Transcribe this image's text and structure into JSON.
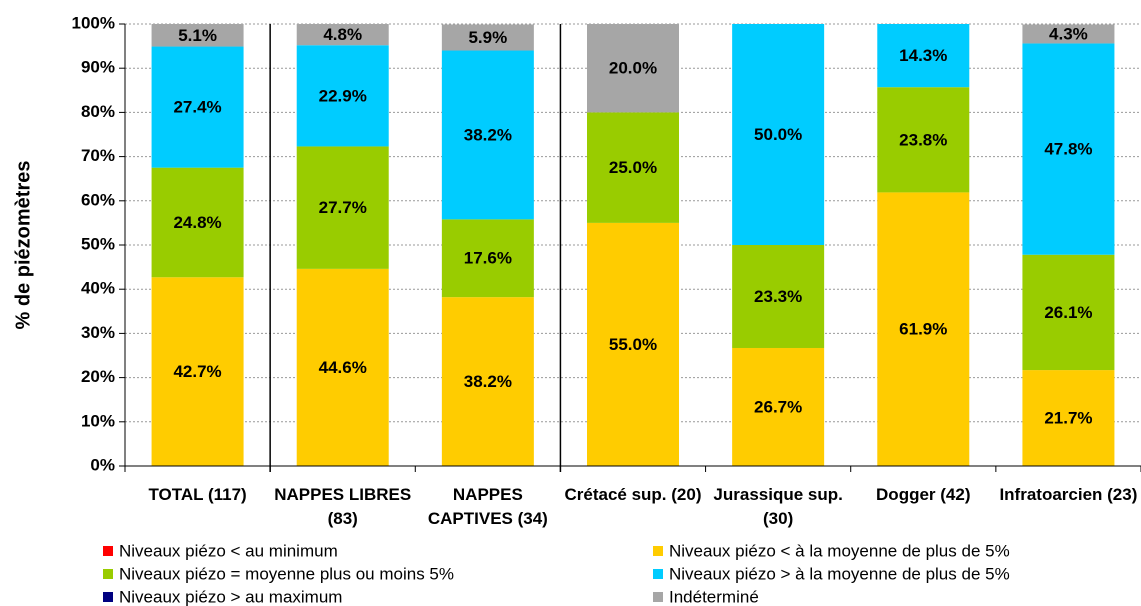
{
  "chart_data": {
    "type": "stacked_bar",
    "y_label": "% de piézomètres",
    "categories": [
      "TOTAL (117)",
      "NAPPES LIBRES (83)",
      "NAPPES CAPTIVES (34)",
      "Crétacé sup. (20)",
      "Jurassique sup. (30)",
      "Dogger (42)",
      "Infratoarcien (23)"
    ],
    "series": [
      {
        "name": "Niveaux piézo < au minimum",
        "color": "#ff0000",
        "values": [
          0,
          0,
          0,
          0,
          0,
          0,
          0
        ]
      },
      {
        "name": "Niveaux piézo < à la moyenne de plus de 5%",
        "color": "#ffcc00",
        "values": [
          42.7,
          44.6,
          38.2,
          55.0,
          26.7,
          61.9,
          21.7
        ],
        "value_labels": [
          "42.7%",
          "44.6%",
          "38.2%",
          "55.0%",
          "26.7%",
          "61.9%",
          "21.7%"
        ]
      },
      {
        "name": "Niveaux piézo = moyenne plus ou moins 5%",
        "color": "#99cc00",
        "values": [
          24.8,
          27.7,
          17.6,
          25.0,
          23.3,
          23.8,
          26.1
        ],
        "value_labels": [
          "24.8%",
          "27.7%",
          "17.6%",
          "25.0%",
          "23.3%",
          "23.8%",
          "26.1%"
        ]
      },
      {
        "name": "Niveaux piézo > à la moyenne de plus de 5%",
        "color": "#00ccff",
        "values": [
          27.4,
          22.9,
          38.2,
          0,
          50.0,
          14.3,
          47.8
        ],
        "value_labels": [
          "27.4%",
          "22.9%",
          "38.2%",
          null,
          "50.0%",
          "14.3%",
          "47.8%"
        ]
      },
      {
        "name": "Niveaux piézo > au maximum",
        "color": "#000080",
        "values": [
          0,
          0,
          0,
          0,
          0,
          0,
          0
        ]
      },
      {
        "name": "Indéterminé",
        "color": "#a6a6a6",
        "values": [
          5.1,
          4.8,
          5.9,
          20.0,
          0,
          0,
          4.3
        ],
        "value_labels": [
          "5.1%",
          "4.8%",
          "5.9%",
          "20.0%",
          null,
          null,
          "4.3%"
        ]
      }
    ],
    "ylim": [
      0,
      100
    ],
    "yticks": [
      {
        "value": 0,
        "label": "0%"
      },
      {
        "value": 10,
        "label": "10%"
      },
      {
        "value": 20,
        "label": "20%"
      },
      {
        "value": 30,
        "label": "30%"
      },
      {
        "value": 40,
        "label": "40%"
      },
      {
        "value": 50,
        "label": "50%"
      },
      {
        "value": 60,
        "label": "60%"
      },
      {
        "value": 70,
        "label": "70%"
      },
      {
        "value": 80,
        "label": "80%"
      },
      {
        "value": 90,
        "label": "90%"
      },
      {
        "value": 100,
        "label": "100%"
      }
    ],
    "grid": true,
    "legend": "bottom"
  }
}
